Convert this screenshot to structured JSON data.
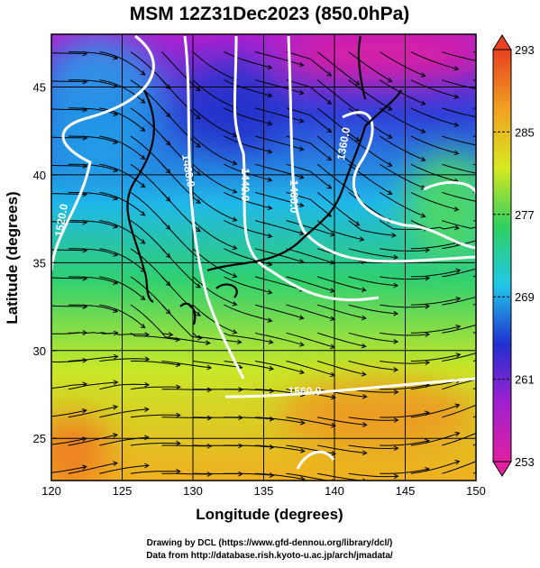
{
  "map": {
    "title": "MSM 12Z31Dec2023 (850.0hPa)",
    "x_label": "Longitude (degrees)",
    "y_label": "Latitude  (degrees)",
    "xlim": [
      120,
      150
    ],
    "ylim": [
      22.6,
      48
    ],
    "xticks": [
      120,
      125,
      130,
      135,
      140,
      145,
      150
    ],
    "yticks": [
      25,
      30,
      35,
      40,
      45
    ],
    "grid": true,
    "contour_labels": [
      "1520.0",
      "1480.0",
      "1440.0",
      "1400.0",
      "1360.0",
      "1560.0"
    ],
    "colorbar": {
      "range": [
        253,
        293
      ],
      "ticks": [
        253,
        261,
        269,
        277,
        285,
        293
      ],
      "colors": [
        "#e020a0",
        "#a020d0",
        "#2030d0",
        "#20c8e8",
        "#30d060",
        "#d8e820",
        "#f0a020",
        "#e84020"
      ]
    },
    "credits": [
      "Drawing by DCL (https://www.gfd-dennou.org/library/dcl/)",
      "Data from http://database.rish.kyoto-u.ac.jp/arch/jmadata/"
    ]
  }
}
